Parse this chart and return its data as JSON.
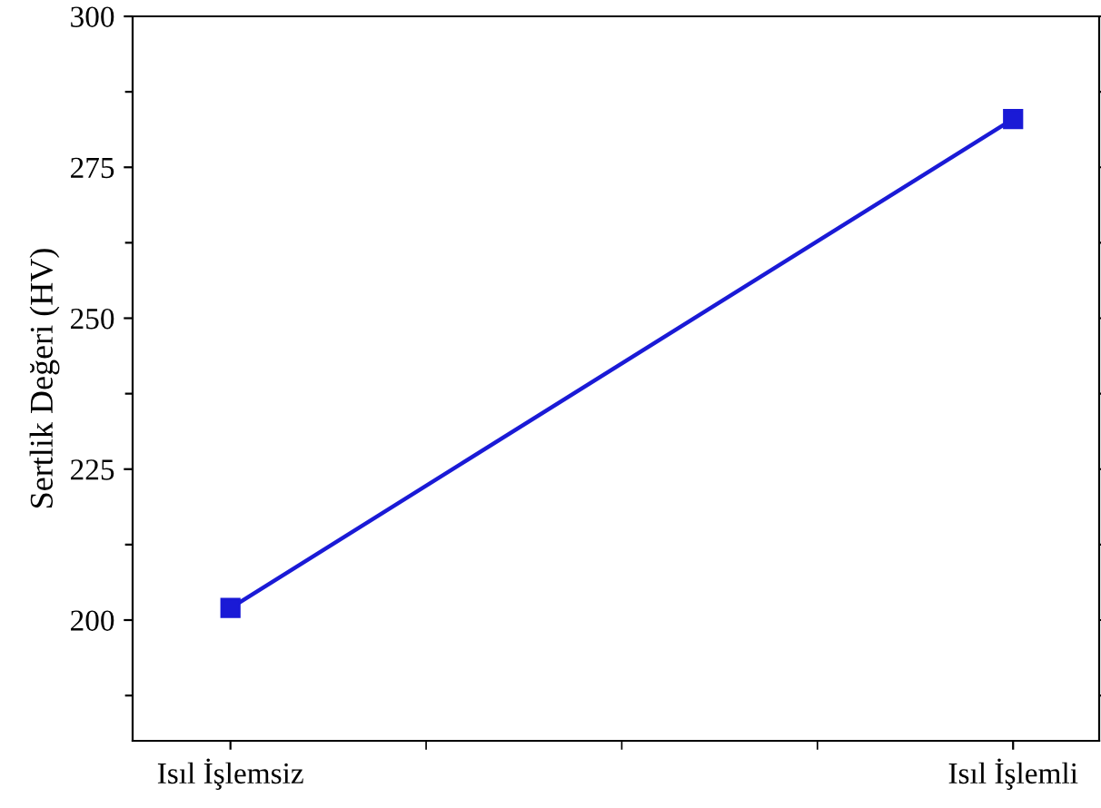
{
  "chart_data": {
    "type": "line",
    "ylabel": "Sertlik Değeri (HV)",
    "categories": [
      "Isıl İşlemsiz",
      "Isıl İşlemli"
    ],
    "series": [
      {
        "color": "#1a1ad6",
        "values": [
          202,
          283
        ]
      }
    ],
    "ylim": [
      180,
      300
    ],
    "yticks": [
      {
        "value": 187.5,
        "label": null
      },
      200,
      {
        "value": 212.5,
        "label": null
      },
      225,
      {
        "value": 237.5,
        "label": null
      },
      250,
      {
        "value": 262.5,
        "label": null
      },
      275,
      {
        "value": 287.5,
        "label": null
      },
      300
    ],
    "marker": "square",
    "line_style": "solid",
    "grid": false,
    "legend": false
  }
}
